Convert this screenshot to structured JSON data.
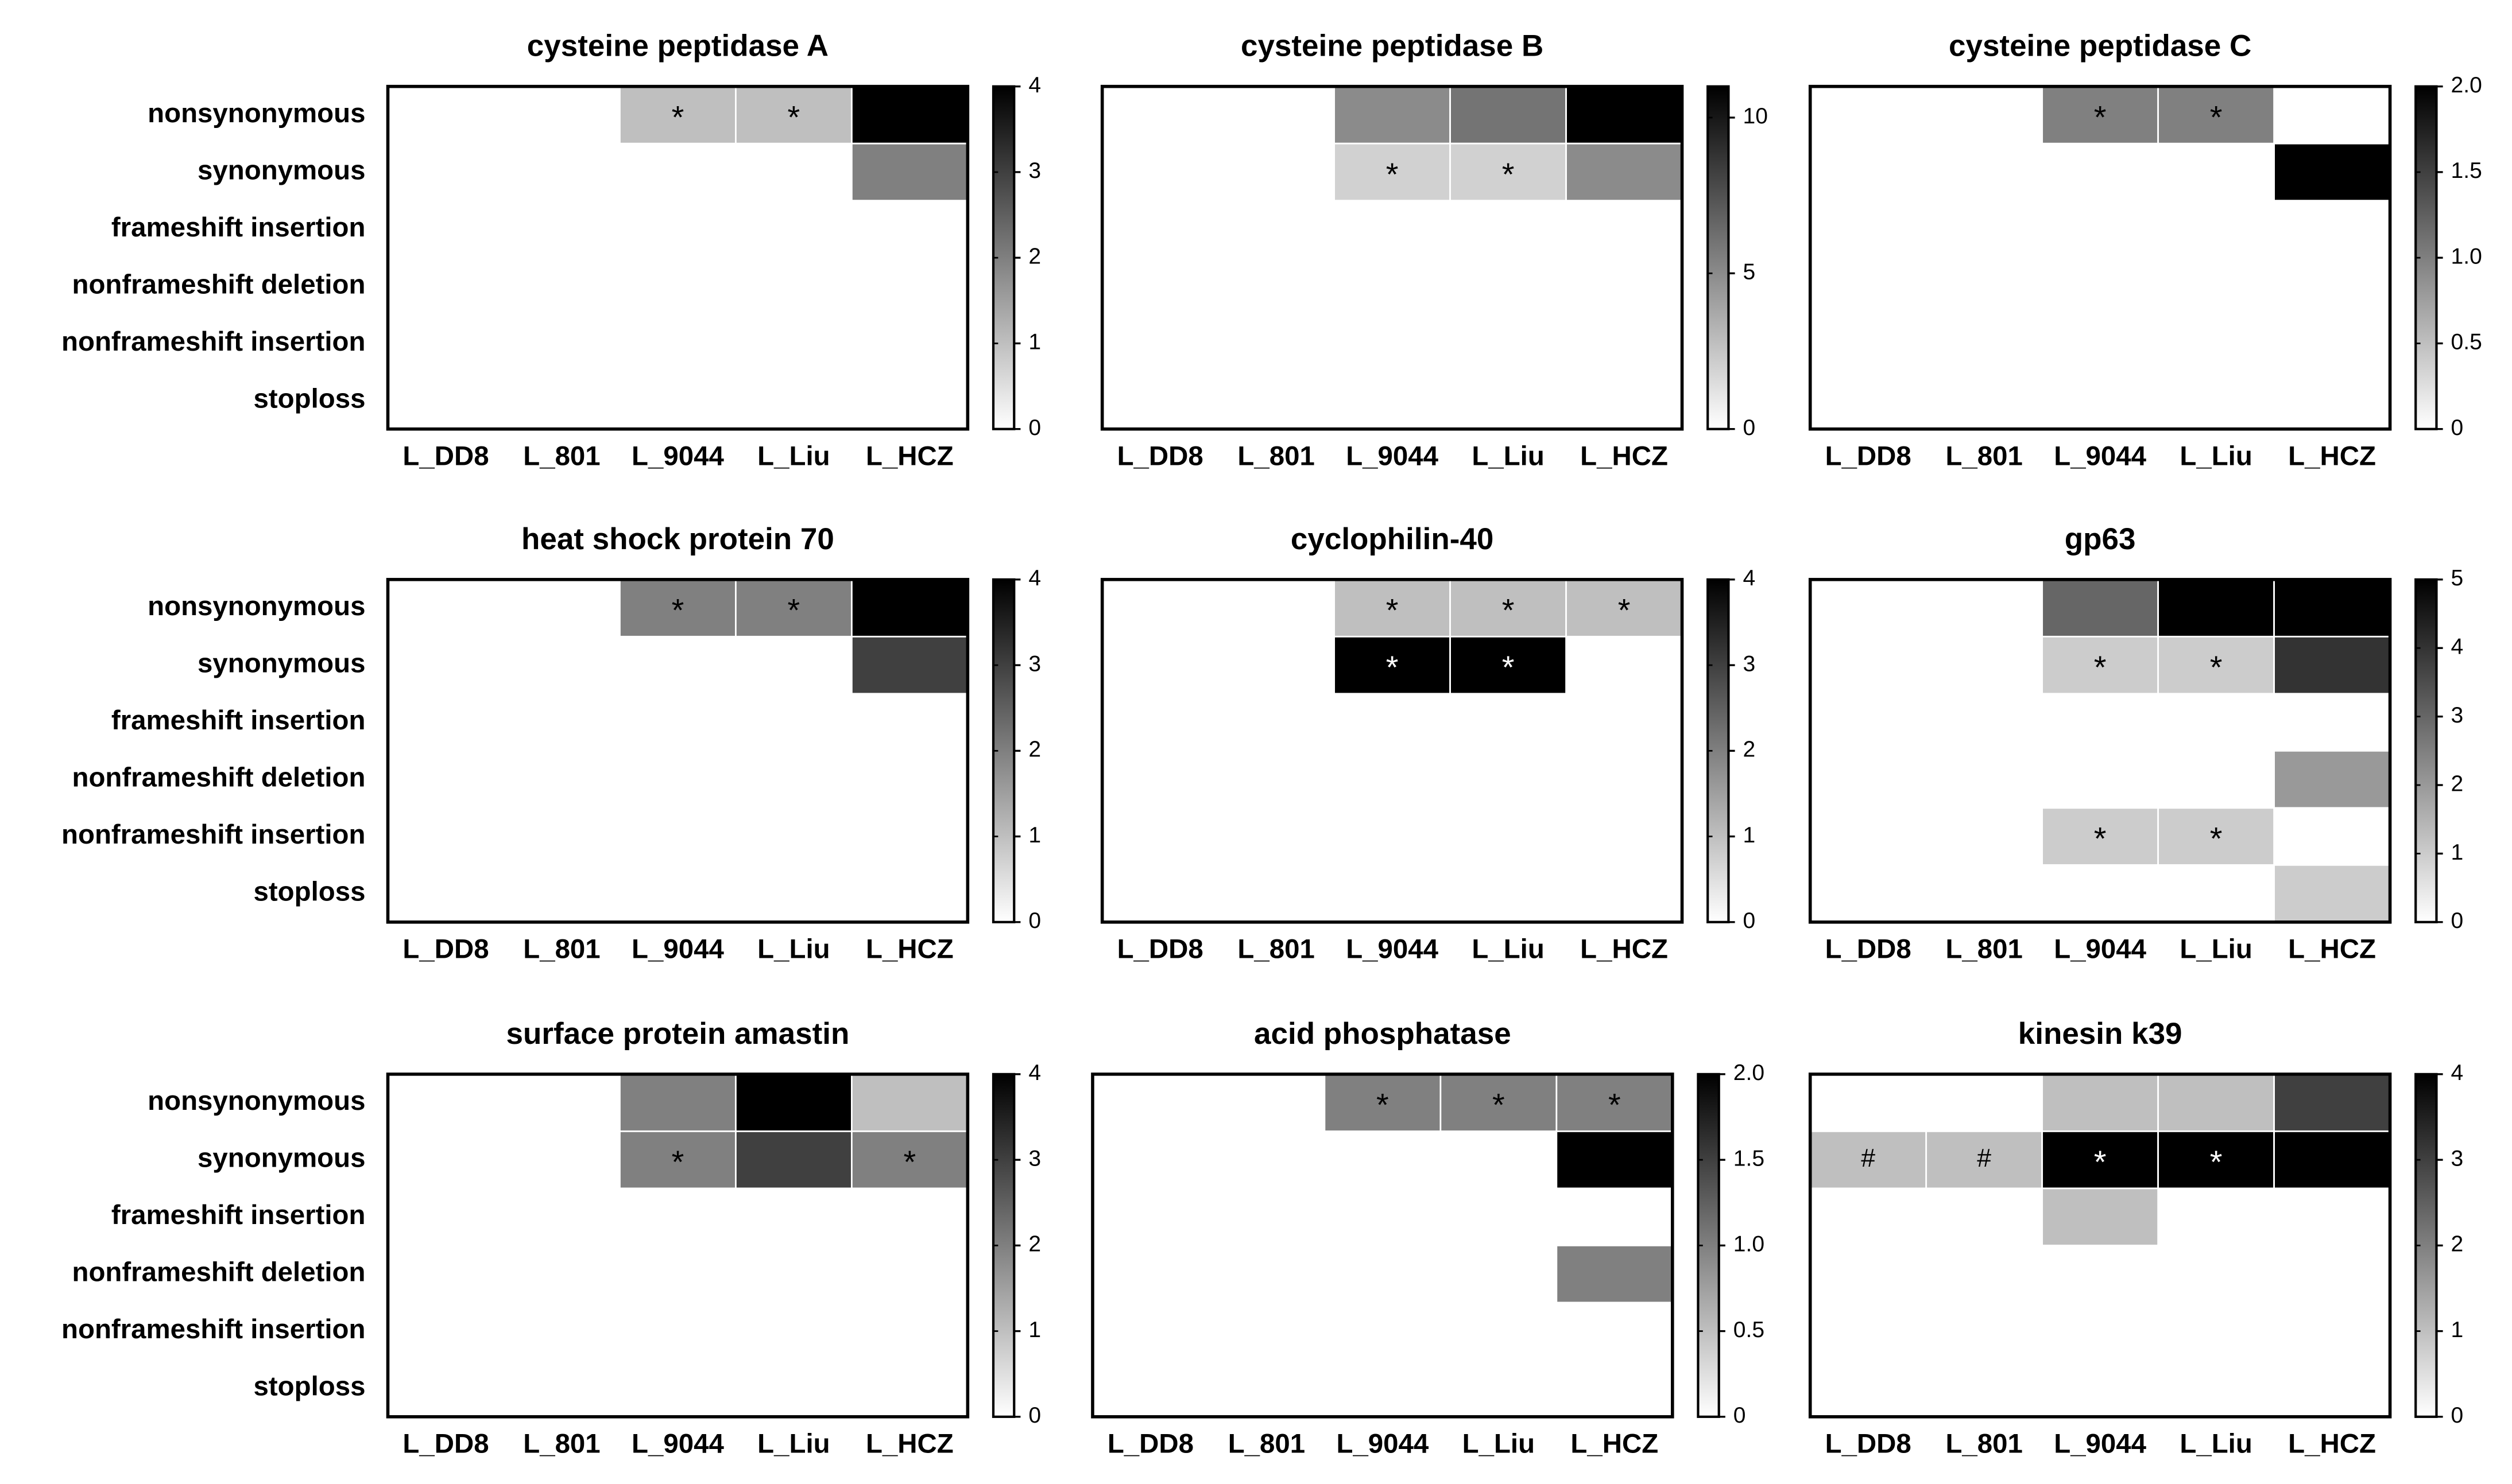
{
  "chart_data": [
    {
      "type": "heatmap",
      "title": "cysteine peptidase A",
      "y_categories": [
        "nonsynonymous",
        "synonymous",
        "frameshift insertion",
        "nonframeshift deletion",
        "nonframeshift insertion",
        "stoploss"
      ],
      "x_categories": [
        "L_DD8",
        "L_801",
        "L_9044",
        "L_Liu",
        "L_HCZ"
      ],
      "values": [
        [
          0,
          0,
          1,
          1,
          4
        ],
        [
          0,
          0,
          0,
          0,
          2
        ],
        [
          0,
          0,
          0,
          0,
          0
        ],
        [
          0,
          0,
          0,
          0,
          0
        ],
        [
          0,
          0,
          0,
          0,
          0
        ],
        [
          0,
          0,
          0,
          0,
          0
        ]
      ],
      "zlim": [
        0,
        4
      ],
      "zticks": [
        0,
        1,
        2,
        3,
        4
      ],
      "annotations": [
        {
          "row": 0,
          "col": 2,
          "text": "*"
        },
        {
          "row": 0,
          "col": 3,
          "text": "*"
        }
      ]
    },
    {
      "type": "heatmap",
      "title": "cysteine peptidase B",
      "x_categories": [
        "L_DD8",
        "L_801",
        "L_9044",
        "L_Liu",
        "L_HCZ"
      ],
      "values": [
        [
          0,
          0,
          5,
          6,
          11
        ],
        [
          0,
          0,
          2,
          2,
          5
        ],
        [
          0,
          0,
          0,
          0,
          0
        ],
        [
          0,
          0,
          0,
          0,
          0
        ],
        [
          0,
          0,
          0,
          0,
          0
        ],
        [
          0,
          0,
          0,
          0,
          0
        ]
      ],
      "zlim": [
        0,
        11
      ],
      "zticks": [
        0,
        5,
        10
      ],
      "annotations": [
        {
          "row": 1,
          "col": 2,
          "text": "*"
        },
        {
          "row": 1,
          "col": 3,
          "text": "*"
        }
      ]
    },
    {
      "type": "heatmap",
      "title": "cysteine peptidase C",
      "x_categories": [
        "L_DD8",
        "L_801",
        "L_9044",
        "L_Liu",
        "L_HCZ"
      ],
      "values": [
        [
          0,
          0,
          1,
          1,
          0
        ],
        [
          0,
          0,
          0,
          0,
          2
        ],
        [
          0,
          0,
          0,
          0,
          0
        ],
        [
          0,
          0,
          0,
          0,
          0
        ],
        [
          0,
          0,
          0,
          0,
          0
        ],
        [
          0,
          0,
          0,
          0,
          0
        ]
      ],
      "zlim": [
        0,
        2
      ],
      "zticks": [
        0,
        0.5,
        {
          "value": 1,
          "label": "1.0"
        },
        1.5,
        {
          "value": 2,
          "label": "2.0"
        }
      ],
      "annotations": [
        {
          "row": 0,
          "col": 2,
          "text": "*"
        },
        {
          "row": 0,
          "col": 3,
          "text": "*"
        }
      ]
    },
    {
      "type": "heatmap",
      "title": "heat shock protein 70",
      "y_categories": [
        "nonsynonymous",
        "synonymous",
        "frameshift insertion",
        "nonframeshift deletion",
        "nonframeshift insertion",
        "stoploss"
      ],
      "x_categories": [
        "L_DD8",
        "L_801",
        "L_9044",
        "L_Liu",
        "L_HCZ"
      ],
      "values": [
        [
          0,
          0,
          2,
          2,
          4
        ],
        [
          0,
          0,
          0,
          0,
          3
        ],
        [
          0,
          0,
          0,
          0,
          0
        ],
        [
          0,
          0,
          0,
          0,
          0
        ],
        [
          0,
          0,
          0,
          0,
          0
        ],
        [
          0,
          0,
          0,
          0,
          0
        ]
      ],
      "zlim": [
        0,
        4
      ],
      "zticks": [
        0,
        1,
        2,
        3,
        4
      ],
      "annotations": [
        {
          "row": 0,
          "col": 2,
          "text": "*"
        },
        {
          "row": 0,
          "col": 3,
          "text": "*"
        }
      ]
    },
    {
      "type": "heatmap",
      "title": "cyclophilin-40",
      "x_categories": [
        "L_DD8",
        "L_801",
        "L_9044",
        "L_Liu",
        "L_HCZ"
      ],
      "values": [
        [
          0,
          0,
          1,
          1,
          1
        ],
        [
          0,
          0,
          4,
          4,
          0
        ],
        [
          0,
          0,
          0,
          0,
          0
        ],
        [
          0,
          0,
          0,
          0,
          0
        ],
        [
          0,
          0,
          0,
          0,
          0
        ],
        [
          0,
          0,
          0,
          0,
          0
        ]
      ],
      "zlim": [
        0,
        4
      ],
      "zticks": [
        0,
        1,
        2,
        3,
        4
      ],
      "annotations": [
        {
          "row": 0,
          "col": 2,
          "text": "*"
        },
        {
          "row": 0,
          "col": 3,
          "text": "*"
        },
        {
          "row": 0,
          "col": 4,
          "text": "*"
        },
        {
          "row": 1,
          "col": 2,
          "text": "*"
        },
        {
          "row": 1,
          "col": 3,
          "text": "*"
        }
      ]
    },
    {
      "type": "heatmap",
      "title": "gp63",
      "x_categories": [
        "L_DD8",
        "L_801",
        "L_9044",
        "L_Liu",
        "L_HCZ"
      ],
      "values": [
        [
          0,
          0,
          3,
          5,
          5
        ],
        [
          0,
          0,
          1,
          1,
          4
        ],
        [
          0,
          0,
          0,
          0,
          0
        ],
        [
          0,
          0,
          0,
          0,
          2
        ],
        [
          0,
          0,
          1,
          1,
          0
        ],
        [
          0,
          0,
          0,
          0,
          1
        ]
      ],
      "zlim": [
        0,
        5
      ],
      "zticks": [
        0,
        1,
        2,
        3,
        4,
        5
      ],
      "annotations": [
        {
          "row": 1,
          "col": 2,
          "text": "*"
        },
        {
          "row": 1,
          "col": 3,
          "text": "*"
        },
        {
          "row": 4,
          "col": 2,
          "text": "*"
        },
        {
          "row": 4,
          "col": 3,
          "text": "*"
        }
      ]
    },
    {
      "type": "heatmap",
      "title": "surface protein amastin",
      "y_categories": [
        "nonsynonymous",
        "synonymous",
        "frameshift insertion",
        "nonframeshift deletion",
        "nonframeshift insertion",
        "stoploss"
      ],
      "x_categories": [
        "L_DD8",
        "L_801",
        "L_9044",
        "L_Liu",
        "L_HCZ"
      ],
      "values": [
        [
          0,
          0,
          2,
          4,
          1
        ],
        [
          0,
          0,
          2,
          3,
          2
        ],
        [
          0,
          0,
          0,
          0,
          0
        ],
        [
          0,
          0,
          0,
          0,
          0
        ],
        [
          0,
          0,
          0,
          0,
          0
        ],
        [
          0,
          0,
          0,
          0,
          0
        ]
      ],
      "zlim": [
        0,
        4
      ],
      "zticks": [
        0,
        1,
        2,
        3,
        4
      ],
      "annotations": [
        {
          "row": 1,
          "col": 2,
          "text": "*"
        },
        {
          "row": 1,
          "col": 4,
          "text": "*"
        }
      ]
    },
    {
      "type": "heatmap",
      "title": "acid phosphatase",
      "x_categories": [
        "L_DD8",
        "L_801",
        "L_9044",
        "L_Liu",
        "L_HCZ"
      ],
      "values": [
        [
          0,
          0,
          1,
          1,
          1
        ],
        [
          0,
          0,
          0,
          0,
          2
        ],
        [
          0,
          0,
          0,
          0,
          0
        ],
        [
          0,
          0,
          0,
          0,
          1
        ],
        [
          0,
          0,
          0,
          0,
          0
        ],
        [
          0,
          0,
          0,
          0,
          0
        ]
      ],
      "zlim": [
        0,
        2
      ],
      "zticks": [
        0,
        0.5,
        {
          "value": 1,
          "label": "1.0"
        },
        1.5,
        {
          "value": 2,
          "label": "2.0"
        }
      ],
      "annotations": [
        {
          "row": 0,
          "col": 2,
          "text": "*"
        },
        {
          "row": 0,
          "col": 3,
          "text": "*"
        },
        {
          "row": 0,
          "col": 4,
          "text": "*"
        }
      ]
    },
    {
      "type": "heatmap",
      "title": "kinesin k39",
      "x_categories": [
        "L_DD8",
        "L_801",
        "L_9044",
        "L_Liu",
        "L_HCZ"
      ],
      "values": [
        [
          0,
          0,
          1,
          1,
          3
        ],
        [
          1,
          1,
          4,
          4,
          4
        ],
        [
          0,
          0,
          1,
          0,
          0
        ],
        [
          0,
          0,
          0,
          0,
          0
        ],
        [
          0,
          0,
          0,
          0,
          0
        ],
        [
          0,
          0,
          0,
          0,
          0
        ]
      ],
      "zlim": [
        0,
        4
      ],
      "zticks": [
        0,
        1,
        2,
        3,
        4
      ],
      "annotations": [
        {
          "row": 1,
          "col": 0,
          "text": "#"
        },
        {
          "row": 1,
          "col": 1,
          "text": "#"
        },
        {
          "row": 1,
          "col": 2,
          "text": "*"
        },
        {
          "row": 1,
          "col": 3,
          "text": "*"
        }
      ]
    }
  ]
}
